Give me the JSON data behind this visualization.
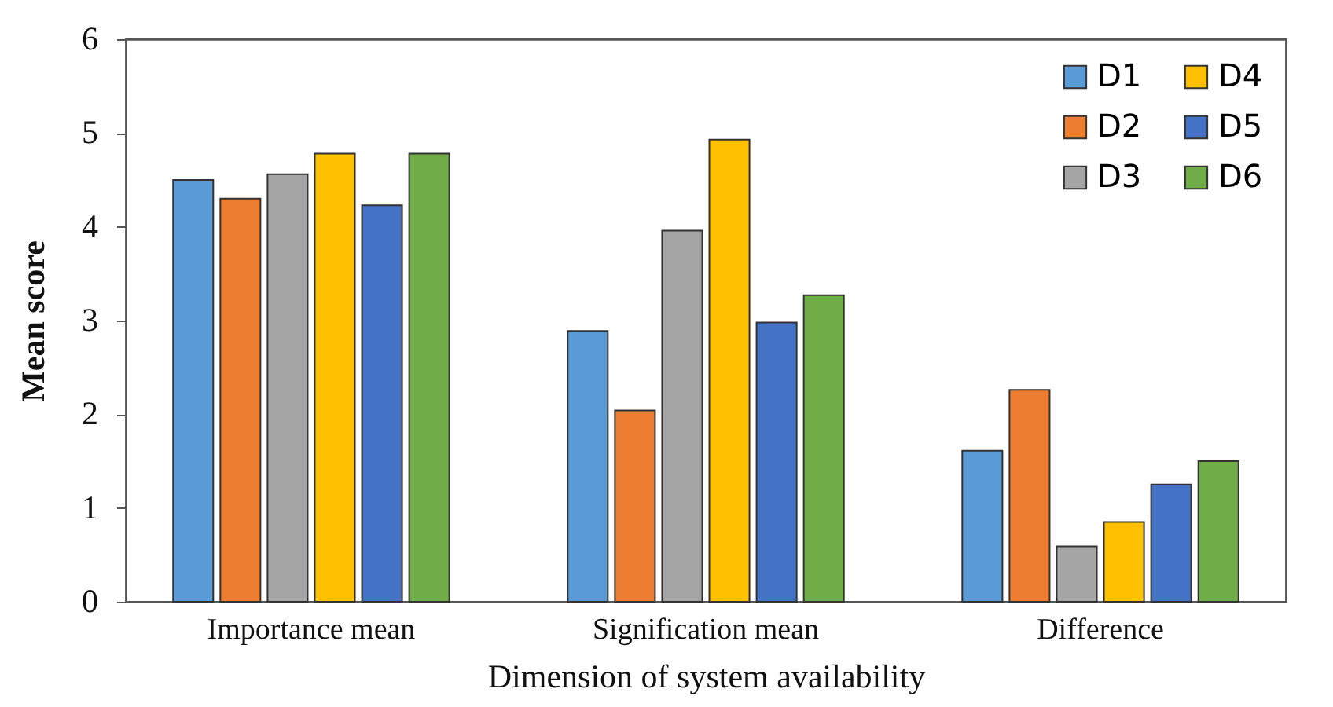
{
  "chart_data": {
    "type": "bar",
    "xlabel": "Dimension of system availability",
    "ylabel": "Mean score",
    "categories": [
      "Importance mean",
      "Signification mean",
      "Difference"
    ],
    "series": [
      {
        "name": "D1",
        "color": "#5b9bd5",
        "values": [
          4.5,
          2.89,
          1.61
        ]
      },
      {
        "name": "D2",
        "color": "#ed7d31",
        "values": [
          4.3,
          2.04,
          2.26
        ]
      },
      {
        "name": "D3",
        "color": "#a5a5a5",
        "values": [
          4.56,
          3.96,
          0.59
        ]
      },
      {
        "name": "D4",
        "color": "#ffc000",
        "values": [
          4.78,
          4.93,
          0.85
        ]
      },
      {
        "name": "D5",
        "color": "#4472c4",
        "values": [
          4.23,
          2.98,
          1.25
        ]
      },
      {
        "name": "D6",
        "color": "#70ad47",
        "values": [
          4.78,
          3.27,
          1.5
        ]
      }
    ],
    "ylim": [
      0,
      6
    ],
    "yticks": [
      0,
      1,
      2,
      3,
      4,
      5,
      6
    ],
    "grid": false,
    "legend": "top right"
  }
}
